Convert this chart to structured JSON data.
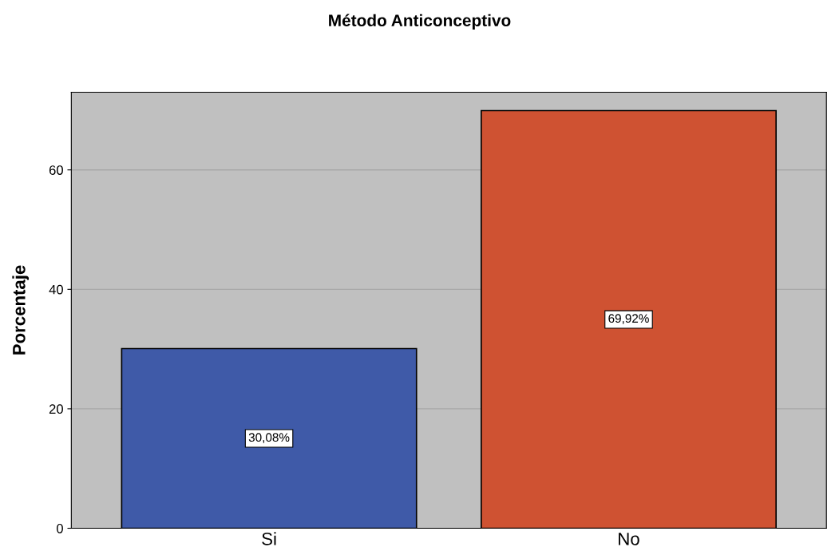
{
  "chart_data": {
    "type": "bar",
    "title": "Método Anticonceptivo",
    "ylabel": "Porcentaje",
    "categories": [
      "Si",
      "No"
    ],
    "values": [
      30.08,
      69.92
    ],
    "colors": [
      "#3f5aa8",
      "#cf5232"
    ],
    "value_labels": [
      "30,08%",
      "69,92%"
    ],
    "ylim": [
      0,
      73
    ],
    "yticks": [
      0,
      20,
      40,
      60
    ],
    "grid": "y"
  }
}
